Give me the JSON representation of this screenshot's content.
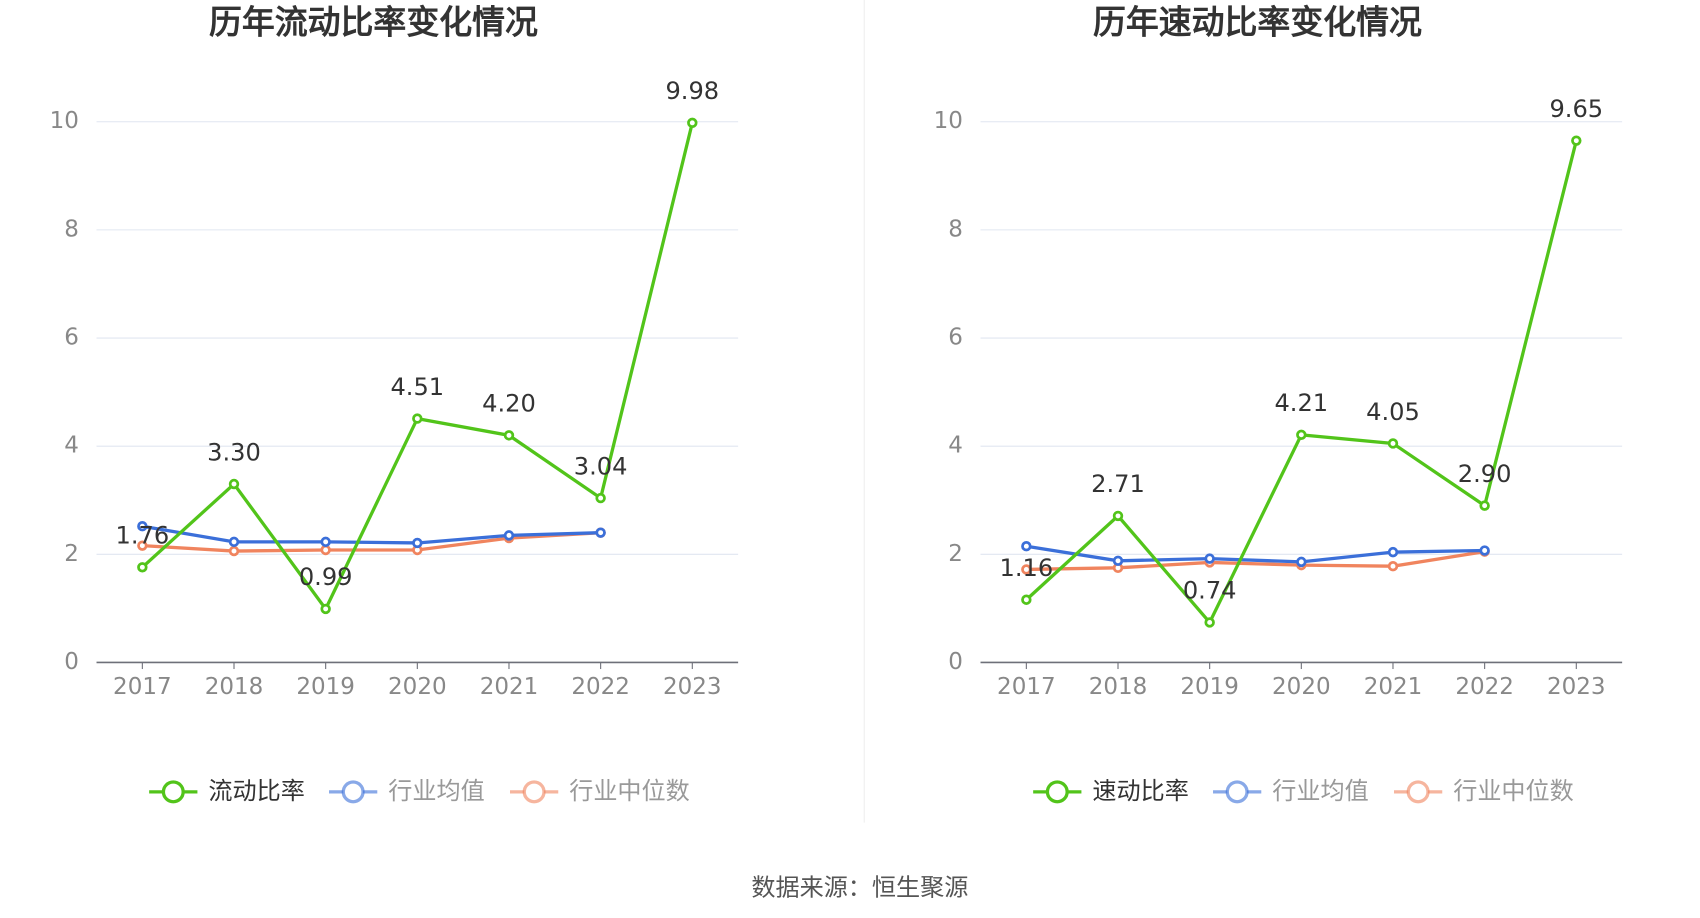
{
  "chart_data": [
    {
      "type": "line",
      "title": "历年流动比率变化情况",
      "categories": [
        "2017",
        "2018",
        "2019",
        "2020",
        "2021",
        "2022",
        "2023"
      ],
      "series": [
        {
          "name": "流动比率",
          "color": "#52c41a",
          "values": [
            1.76,
            3.3,
            0.99,
            4.51,
            4.2,
            3.04,
            9.98
          ],
          "value_labels": [
            "1.76",
            "3.30",
            "0.99",
            "4.51",
            "4.20",
            "3.04",
            "9.98"
          ]
        },
        {
          "name": "行业均值",
          "color": "#3b6fd9",
          "values": [
            2.52,
            2.23,
            2.23,
            2.21,
            2.35,
            2.4,
            null
          ]
        },
        {
          "name": "行业中位数",
          "color": "#f0845e",
          "values": [
            2.16,
            2.06,
            2.08,
            2.08,
            2.3,
            2.4,
            null
          ]
        }
      ],
      "ylim": [
        0,
        10
      ],
      "yticks": [
        0,
        2,
        4,
        6,
        8,
        10
      ],
      "grid": true,
      "legend": "bottom"
    },
    {
      "type": "line",
      "title": "历年速动比率变化情况",
      "categories": [
        "2017",
        "2018",
        "2019",
        "2020",
        "2021",
        "2022",
        "2023"
      ],
      "series": [
        {
          "name": "速动比率",
          "color": "#52c41a",
          "values": [
            1.16,
            2.71,
            0.74,
            4.21,
            4.05,
            2.9,
            9.65
          ],
          "value_labels": [
            "1.16",
            "2.71",
            "0.74",
            "4.21",
            "4.05",
            "2.90",
            "9.65"
          ]
        },
        {
          "name": "行业均值",
          "color": "#3b6fd9",
          "values": [
            2.15,
            1.88,
            1.92,
            1.86,
            2.04,
            2.07,
            null
          ]
        },
        {
          "name": "行业中位数",
          "color": "#f0845e",
          "values": [
            1.72,
            1.75,
            1.85,
            1.8,
            1.78,
            2.05,
            null
          ]
        }
      ],
      "ylim": [
        0,
        10
      ],
      "yticks": [
        0,
        2,
        4,
        6,
        8,
        10
      ],
      "grid": true,
      "legend": "bottom"
    }
  ],
  "source": "数据来源：恒生聚源"
}
